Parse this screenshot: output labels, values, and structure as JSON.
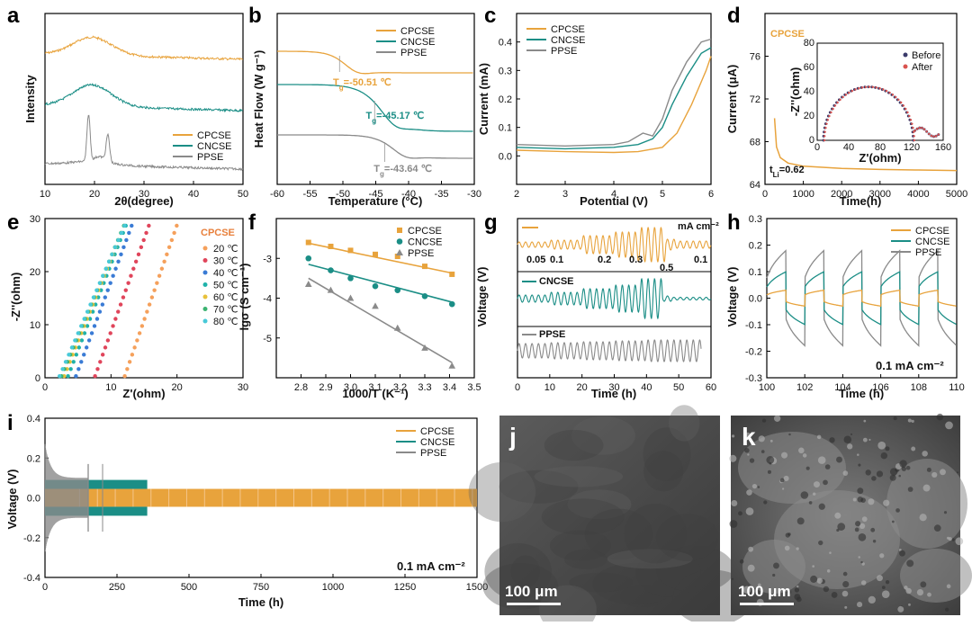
{
  "colors": {
    "CPCSE": "#E8A33C",
    "CNCSE": "#1B8E86",
    "PPSE": "#8A8A8A",
    "axis": "#000000"
  },
  "chart_data": [
    {
      "id": "a",
      "type": "line",
      "panel_label": "a",
      "xlabel": "2θ(degree)",
      "ylabel": "Intensity",
      "xlim": [
        10,
        50
      ],
      "xticks": [
        "10",
        "20",
        "30",
        "40",
        "50"
      ],
      "legend": [
        "CPCSE",
        "CNCSE",
        "PPSE"
      ],
      "legend_position": "bottom-right",
      "series": [
        {
          "name": "CPCSE",
          "description": "amorphous halo centered ~19°"
        },
        {
          "name": "CNCSE",
          "description": "amorphous halo centered ~19°"
        },
        {
          "name": "PPSE",
          "description": "sharp crystalline peaks at ~18.8° and ~22.7°"
        }
      ]
    },
    {
      "id": "b",
      "type": "line",
      "panel_label": "b",
      "xlabel": "Temperature (°C)",
      "ylabel": "Heat Flow (W g⁻¹)",
      "xlim": [
        -60,
        -30
      ],
      "xticks": [
        "-60",
        "-55",
        "-50",
        "-45",
        "-40",
        "-35",
        "-30"
      ],
      "legend": [
        "CPCSE",
        "CNCSE",
        "PPSE"
      ],
      "legend_position": "top-right",
      "annotations": [
        {
          "series": "CPCSE",
          "sub": "g",
          "text": "=-50.51 ℃",
          "tg": -50.51
        },
        {
          "series": "CNCSE",
          "sub": "g",
          "text": "=-45.17 ℃",
          "tg": -45.17
        },
        {
          "series": "PPSE",
          "sub": "g",
          "text": "=-43.64 ℃",
          "tg": -43.64
        }
      ]
    },
    {
      "id": "c",
      "type": "line",
      "panel_label": "c",
      "xlabel": "Potential (V)",
      "ylabel": "Current (mA)",
      "xlim": [
        2,
        6
      ],
      "ylim": [
        -0.1,
        0.5
      ],
      "xticks": [
        "2",
        "3",
        "4",
        "5",
        "6"
      ],
      "yticks": [
        "0.0",
        "0.1",
        "0.2",
        "0.3",
        "0.4"
      ],
      "legend": [
        "CPCSE",
        "CNCSE",
        "PPSE"
      ],
      "legend_position": "top-left",
      "series": [
        {
          "name": "CPCSE",
          "x": [
            2,
            3,
            4,
            4.5,
            5,
            5.3,
            5.6,
            5.9,
            6
          ],
          "y": [
            0.02,
            0.015,
            0.012,
            0.015,
            0.03,
            0.08,
            0.18,
            0.3,
            0.35
          ]
        },
        {
          "name": "CNCSE",
          "x": [
            2,
            3,
            4,
            4.5,
            4.8,
            5,
            5.2,
            5.5,
            5.8,
            6
          ],
          "y": [
            0.03,
            0.025,
            0.03,
            0.04,
            0.06,
            0.1,
            0.18,
            0.28,
            0.36,
            0.38
          ]
        },
        {
          "name": "PPSE",
          "x": [
            2,
            3,
            4,
            4.3,
            4.6,
            4.8,
            5,
            5.2,
            5.5,
            5.8,
            6
          ],
          "y": [
            0.04,
            0.035,
            0.04,
            0.05,
            0.08,
            0.07,
            0.13,
            0.23,
            0.33,
            0.4,
            0.41
          ]
        }
      ]
    },
    {
      "id": "d",
      "type": "line",
      "panel_label": "d",
      "xlabel": "Time(h)",
      "ylabel": "Current (μA)",
      "xlim": [
        0,
        5000
      ],
      "ylim": [
        64,
        80
      ],
      "xticks": [
        "0",
        "1000",
        "2000",
        "3000",
        "4000",
        "5000"
      ],
      "yticks": [
        "64",
        "68",
        "72",
        "76"
      ],
      "title": "CPCSE",
      "annotation": "=0.62",
      "annotation_prefix": "t",
      "annotation_sub": "Li",
      "series": [
        {
          "name": "CPCSE",
          "x": [
            250,
            300,
            400,
            600,
            1000,
            2000,
            3000,
            4000,
            5000
          ],
          "y": [
            70.2,
            67.5,
            66.5,
            66.0,
            65.7,
            65.5,
            65.4,
            65.35,
            65.3
          ]
        }
      ],
      "inset": {
        "xlabel": "Z'(ohm)",
        "ylabel": "-Z''(ohm)",
        "xlim": [
          0,
          160
        ],
        "ylim": [
          0,
          80
        ],
        "xticks": [
          "0",
          "40",
          "80",
          "120",
          "160"
        ],
        "yticks": [
          "0",
          "20",
          "40",
          "60",
          "80"
        ],
        "legend": [
          "Before",
          "After"
        ],
        "before_color": "#3A3A6A",
        "after_color": "#D9534F"
      }
    },
    {
      "id": "e",
      "type": "scatter",
      "panel_label": "e",
      "xlabel": "Z'(ohm)",
      "ylabel": "-Z''(ohm)",
      "xlim": [
        0,
        30
      ],
      "ylim": [
        0,
        30
      ],
      "xticks": [
        "0",
        "10",
        "20",
        "30"
      ],
      "yticks": [
        "0",
        "10",
        "20",
        "30"
      ],
      "legend_title": "CPCSE",
      "series": [
        {
          "name": "20 ℃",
          "x0": 12.0,
          "color": "#F5A05B"
        },
        {
          "name": "30 ℃",
          "x0": 7.5,
          "color": "#E0455B"
        },
        {
          "name": "40 ℃",
          "x0": 4.6,
          "color": "#3A7BD5"
        },
        {
          "name": "50 ℃",
          "x0": 3.4,
          "color": "#20B2AA"
        },
        {
          "name": "60 ℃",
          "x0": 2.8,
          "color": "#E8C13A"
        },
        {
          "name": "70 ℃",
          "x0": 2.4,
          "color": "#3CB371"
        },
        {
          "name": "80 ℃",
          "x0": 2.1,
          "color": "#48C9D8"
        }
      ]
    },
    {
      "id": "f",
      "type": "scatter",
      "panel_label": "f",
      "xlabel": "1000/T (K⁻¹)",
      "ylabel": "lgσ (S cm⁻¹)",
      "xlim": [
        2.7,
        3.5
      ],
      "ylim": [
        -6,
        -2
      ],
      "xticks": [
        "2.8",
        "2.9",
        "3.0",
        "3.1",
        "3.2",
        "3.3",
        "3.4",
        "3.5"
      ],
      "yticks": [
        "-3",
        "-4",
        "-5"
      ],
      "legend_position": "top-right",
      "series": [
        {
          "name": "CPCSE",
          "x": [
            2.83,
            2.92,
            3.0,
            3.1,
            3.19,
            3.3,
            3.41
          ],
          "y": [
            -2.6,
            -2.7,
            -2.8,
            -2.9,
            -2.95,
            -3.2,
            -3.4
          ],
          "fit": [
            [
              2.83,
              -2.62
            ],
            [
              3.41,
              -3.37
            ]
          ]
        },
        {
          "name": "CNCSE",
          "x": [
            2.83,
            2.92,
            3.0,
            3.1,
            3.19,
            3.3,
            3.41
          ],
          "y": [
            -3.0,
            -3.3,
            -3.5,
            -3.7,
            -3.8,
            -3.95,
            -4.15
          ],
          "fit": [
            [
              2.83,
              -3.15
            ],
            [
              3.41,
              -4.1
            ]
          ]
        },
        {
          "name": "PPSE",
          "x": [
            2.83,
            2.92,
            3.0,
            3.1,
            3.19,
            3.3,
            3.41
          ],
          "y": [
            -3.65,
            -3.8,
            -4.0,
            -4.2,
            -4.75,
            -5.25,
            -5.7
          ],
          "fit": [
            [
              2.83,
              -3.5
            ],
            [
              3.41,
              -5.62
            ]
          ]
        }
      ]
    },
    {
      "id": "g",
      "type": "line",
      "panel_label": "g",
      "xlabel": "Time (h)",
      "ylabel": "Voltage (V)",
      "xlim": [
        0,
        60
      ],
      "xticks": [
        "0",
        "10",
        "20",
        "30",
        "40",
        "50",
        "60"
      ],
      "unit_label": "mA cm⁻²",
      "rate_labels": [
        "0.05",
        "0.1",
        "0.2",
        "0.3",
        "0.5",
        "0.1"
      ],
      "sub_labels": [
        "CNCSE",
        "PPSE"
      ]
    },
    {
      "id": "h",
      "type": "line",
      "panel_label": "h",
      "xlabel": "Time (h)",
      "ylabel": "Voltage (V)",
      "xlim": [
        100,
        110
      ],
      "ylim": [
        -0.3,
        0.3
      ],
      "xticks": [
        "100",
        "102",
        "104",
        "106",
        "108",
        "110"
      ],
      "yticks": [
        "-0.3",
        "-0.2",
        "-0.1",
        "0.0",
        "0.1",
        "0.2",
        "0.3"
      ],
      "annotation": "0.1 mA cm⁻²",
      "legend_position": "top-right",
      "series": [
        {
          "name": "CPCSE",
          "amplitude": 0.03
        },
        {
          "name": "CNCSE",
          "amplitude": 0.1
        },
        {
          "name": "PPSE",
          "amplitude": 0.18
        }
      ]
    },
    {
      "id": "i",
      "type": "line",
      "panel_label": "i",
      "xlabel": "Time (h)",
      "ylabel": "Voltage (V)",
      "xlim": [
        0,
        1500
      ],
      "ylim": [
        -0.4,
        0.4
      ],
      "xticks": [
        "0",
        "250",
        "500",
        "750",
        "1000",
        "1250",
        "1500"
      ],
      "yticks": [
        "-0.4",
        "-0.2",
        "0.0",
        "0.2",
        "0.4"
      ],
      "annotation": "0.1 mA cm⁻²",
      "legend_position": "top-right",
      "series": [
        {
          "name": "CPCSE",
          "duration_h": 1500,
          "amplitude": 0.045
        },
        {
          "name": "CNCSE",
          "duration_h": 355,
          "amplitude": 0.08
        },
        {
          "name": "PPSE",
          "duration_h": 150,
          "amplitude": 0.17
        }
      ]
    }
  ],
  "images": [
    {
      "id": "j",
      "panel_label": "j",
      "scale_bar": "100 μm",
      "description": "smooth surface SEM"
    },
    {
      "id": "k",
      "panel_label": "k",
      "scale_bar": "100 μm",
      "description": "rough porous surface SEM"
    }
  ]
}
